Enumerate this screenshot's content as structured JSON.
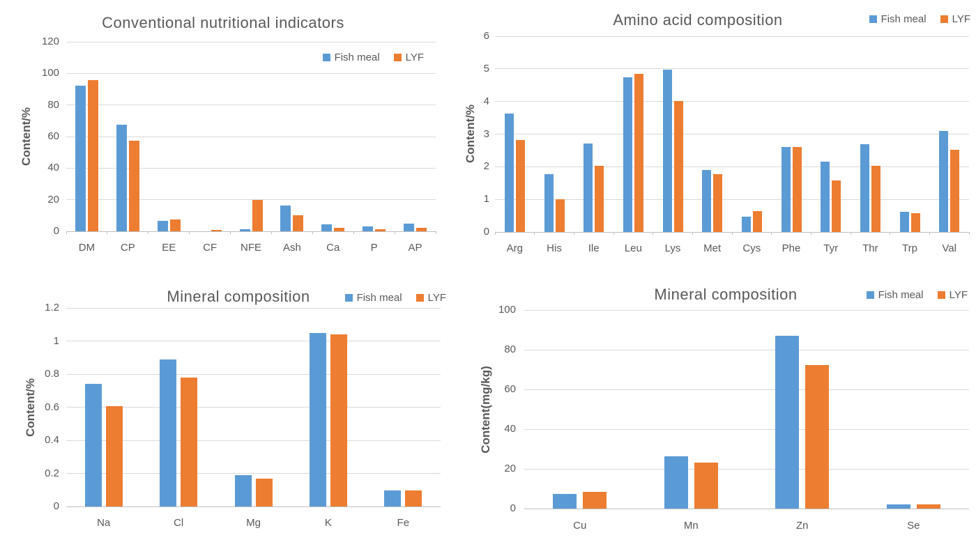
{
  "page": {
    "background": "#ffffff"
  },
  "colors": {
    "fish_meal": "#5b9bd5",
    "lyf": "#ed7d31",
    "text": "#595959",
    "gridline": "#d9d9d9",
    "axis_line": "#bfbfbf"
  },
  "legend": {
    "items": [
      {
        "label": "Fish meal",
        "color": "#5b9bd5"
      },
      {
        "label": "LYF",
        "color": "#ed7d31"
      }
    ]
  },
  "chart_data": [
    {
      "id": "conventional-nutritional-indicators",
      "type": "bar",
      "title": "Conventional nutritional indicators",
      "xlabel": "",
      "ylabel": "Content/%",
      "ylim": [
        0,
        120
      ],
      "yticks": [
        "0",
        "20",
        "40",
        "60",
        "80",
        "100",
        "120"
      ],
      "grid": true,
      "legend_position": "inside-top-right",
      "categories": [
        "DM",
        "CP",
        "EE",
        "CF",
        "NFE",
        "Ash",
        "Ca",
        "P",
        "AP"
      ],
      "series": [
        {
          "name": "Fish meal",
          "values": [
            92,
            67.4,
            6.5,
            0,
            1.5,
            16.3,
            4.2,
            2.9,
            5.0
          ]
        },
        {
          "name": "LYF",
          "values": [
            95.8,
            57.3,
            7.7,
            1.0,
            19.7,
            10.2,
            2.0,
            1.2,
            2.3
          ]
        }
      ]
    },
    {
      "id": "amino-acid-composition",
      "type": "bar",
      "title": "Amino acid composition",
      "xlabel": "",
      "ylabel": "Content/%",
      "ylim": [
        0,
        6
      ],
      "yticks": [
        "0",
        "1",
        "2",
        "3",
        "4",
        "5",
        "6"
      ],
      "grid": true,
      "legend_position": "top-right",
      "categories": [
        "Arg",
        "His",
        "Ile",
        "Leu",
        "Lys",
        "Met",
        "Cys",
        "Phe",
        "Tyr",
        "Thr",
        "Trp",
        "Val"
      ],
      "series": [
        {
          "name": "Fish meal",
          "values": [
            3.63,
            1.78,
            2.71,
            4.74,
            4.98,
            1.89,
            0.48,
            2.61,
            2.15,
            2.7,
            0.61,
            3.1
          ]
        },
        {
          "name": "LYF",
          "values": [
            2.81,
            1.0,
            2.03,
            4.85,
            4.02,
            1.78,
            0.63,
            2.6,
            1.59,
            2.03,
            0.58,
            2.53
          ]
        }
      ]
    },
    {
      "id": "mineral-composition-percent",
      "type": "bar",
      "title": "Mineral composition",
      "xlabel": "",
      "ylabel": "Content/%",
      "ylim": [
        0,
        1.2
      ],
      "yticks": [
        "0",
        "0.2",
        "0.4",
        "0.6",
        "0.8",
        "1",
        "1.2"
      ],
      "grid": true,
      "legend_position": "top-right",
      "categories": [
        "Na",
        "Cl",
        "Mg",
        "K",
        "Fe"
      ],
      "series": [
        {
          "name": "Fish meal",
          "values": [
            0.74,
            0.89,
            0.19,
            1.05,
            0.095
          ]
        },
        {
          "name": "LYF",
          "values": [
            0.605,
            0.78,
            0.17,
            1.04,
            0.095
          ]
        }
      ]
    },
    {
      "id": "mineral-composition-mgkg",
      "type": "bar",
      "title": "Mineral composition",
      "xlabel": "",
      "ylabel": "Content(mg/kg)",
      "ylim": [
        0,
        100
      ],
      "yticks": [
        "0",
        "20",
        "40",
        "60",
        "80",
        "100"
      ],
      "grid": true,
      "legend_position": "top-right",
      "categories": [
        "Cu",
        "Mn",
        "Zn",
        "Se"
      ],
      "series": [
        {
          "name": "Fish meal",
          "values": [
            7.3,
            26.2,
            87.0,
            2.2
          ]
        },
        {
          "name": "LYF",
          "values": [
            8.3,
            23.3,
            72.2,
            2.1
          ]
        }
      ]
    }
  ]
}
